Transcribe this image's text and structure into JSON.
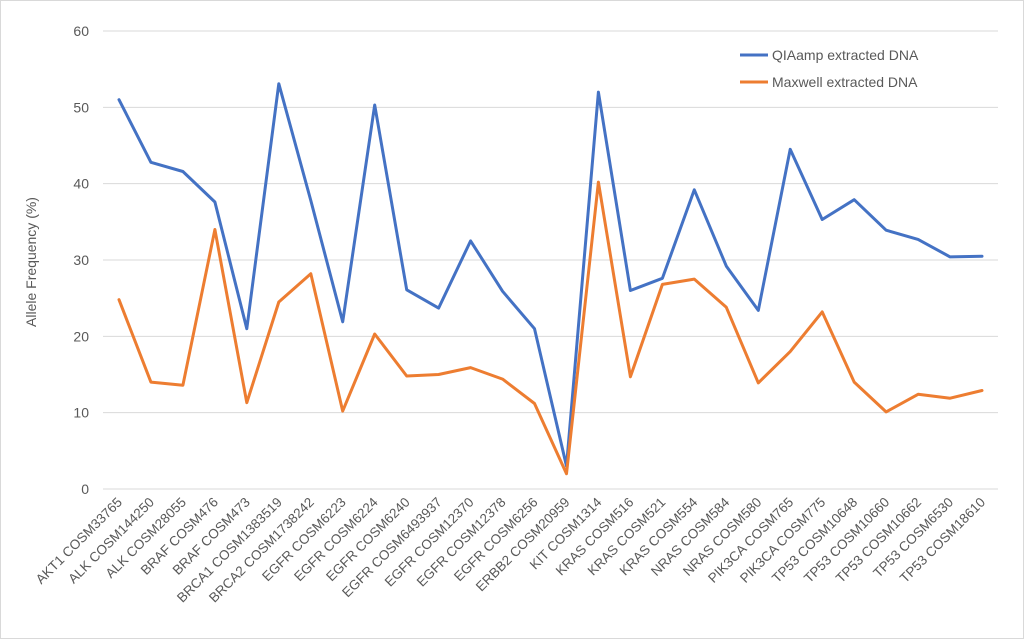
{
  "chart_data": {
    "type": "line",
    "title": "",
    "xlabel": "",
    "ylabel": "Allele Frequency (%)",
    "ylim": [
      0,
      60
    ],
    "yticks": [
      0,
      10,
      20,
      30,
      40,
      50,
      60
    ],
    "grid": true,
    "legend_position": "top-right",
    "categories": [
      "AKT1 COSM33765",
      "ALK COSM144250",
      "ALK COSM28055",
      "BRAF COSM476",
      "BRAF COSM473",
      "BRCA1 COSM1383519",
      "BRCA2 COSM1738242",
      "EGFR COSM6223",
      "EGFR COSM6224",
      "EGFR COSM6240",
      "EGFR COSM6493937",
      "EGFR COSM12370",
      "EGFR COSM12378",
      "EGFR COSM6256",
      "ERBB2 COSM20959",
      "KIT COSM1314",
      "KRAS COSM516",
      "KRAS COSM521",
      "KRAS COSM554",
      "NRAS COSM584",
      "NRAS COSM580",
      "PIK3CA COSM765",
      "PIK3CA COSM775",
      "TP53 COSM10648",
      "TP53 COSM10660",
      "TP53 COSM10662",
      "TP53 COSM6530",
      "TP53 COSM18610"
    ],
    "series": [
      {
        "name": "QIAamp extracted DNA",
        "color": "#4472c4",
        "values": [
          51.0,
          42.8,
          41.6,
          37.6,
          21.0,
          53.1,
          37.8,
          21.9,
          50.3,
          26.1,
          23.7,
          32.5,
          25.9,
          21.0,
          3.0,
          52.0,
          26.0,
          27.6,
          39.2,
          29.2,
          23.4,
          44.5,
          35.3,
          37.9,
          33.9,
          32.7,
          30.4,
          30.5
        ]
      },
      {
        "name": "Maxwell extracted DNA",
        "color": "#ed7d31",
        "values": [
          24.8,
          14.0,
          13.6,
          34.0,
          11.3,
          24.5,
          28.2,
          10.2,
          20.3,
          14.8,
          15.0,
          15.9,
          14.4,
          11.2,
          2.0,
          40.2,
          14.7,
          26.8,
          27.5,
          23.8,
          13.9,
          18.0,
          23.2,
          14.0,
          10.1,
          12.4,
          11.9,
          12.9
        ]
      }
    ]
  }
}
